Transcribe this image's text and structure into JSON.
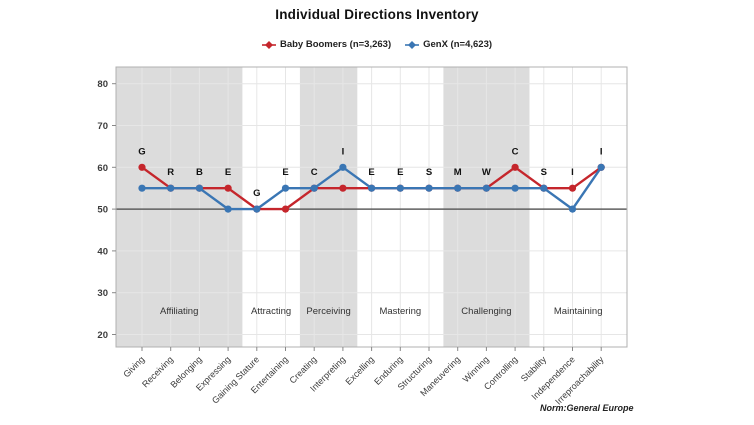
{
  "page": {
    "title": "Individual Directions Inventory",
    "norm_note": "Norm:General Europe"
  },
  "legend": {
    "items": [
      {
        "label": "Baby Boomers (n=3,263)",
        "color": "#c5262c"
      },
      {
        "label": "GenX (n=4,623)",
        "color": "#3a76b4"
      }
    ]
  },
  "chart_data": {
    "type": "line",
    "title": "Individual Directions Inventory",
    "categories": [
      "Giving",
      "Receiving",
      "Belonging",
      "Expressing",
      "Gaining Stature",
      "Entertaining",
      "Creating",
      "Interpreting",
      "Excelling",
      "Enduring",
      "Structuring",
      "Maneuvering",
      "Winning",
      "Controlling",
      "Stability",
      "Independence",
      "Irreproachability"
    ],
    "point_labels": [
      "G",
      "R",
      "B",
      "E",
      "G",
      "E",
      "C",
      "I",
      "E",
      "E",
      "S",
      "M",
      "W",
      "C",
      "S",
      "I",
      "I"
    ],
    "series": [
      {
        "name": "Baby Boomers (n=3,263)",
        "color": "#c5262c",
        "values": [
          60,
          55,
          55,
          55,
          50,
          50,
          55,
          55,
          55,
          55,
          55,
          55,
          55,
          60,
          55,
          55,
          60
        ]
      },
      {
        "name": "GenX (n=4,623)",
        "color": "#3a76b4",
        "values": [
          55,
          55,
          55,
          50,
          50,
          55,
          55,
          60,
          55,
          55,
          55,
          55,
          55,
          55,
          55,
          50,
          60
        ]
      }
    ],
    "groups": [
      {
        "label": "Affiliating",
        "from": 0,
        "to": 3,
        "shaded": true
      },
      {
        "label": "Attracting",
        "from": 4,
        "to": 5,
        "shaded": false
      },
      {
        "label": "Perceiving",
        "from": 6,
        "to": 7,
        "shaded": true
      },
      {
        "label": "Mastering",
        "from": 8,
        "to": 10,
        "shaded": false
      },
      {
        "label": "Challenging",
        "from": 11,
        "to": 13,
        "shaded": true
      },
      {
        "label": "Maintaining",
        "from": 14,
        "to": 16,
        "shaded": false
      }
    ],
    "yticks": [
      20,
      30,
      40,
      50,
      60,
      70,
      80
    ],
    "ylim": [
      17,
      84
    ],
    "norm_line": 50,
    "grid_on": true,
    "legend_position": "top-center",
    "band_color": "#dcdcdc",
    "grid_color": "#e6e6e6",
    "axis_color": "#b0b0b0",
    "tick_color": "#888888",
    "norm_line_color": "#5f5f5f",
    "label_color": "#3c3c3c"
  }
}
